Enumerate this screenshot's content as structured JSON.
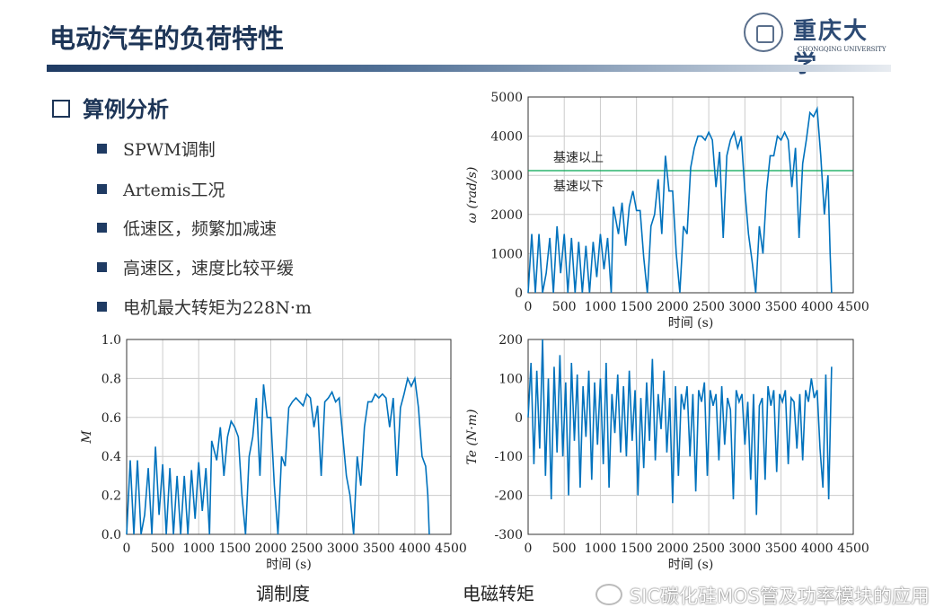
{
  "title": "电动汽车的负荷特性",
  "logo": {
    "cn": "重庆大学",
    "en": "CHONGQING UNIVERSITY"
  },
  "section": "算例分析",
  "bullets": [
    "SPWM调制",
    "Artemis工况",
    "低速区，频繁加减速",
    "高速区，速度比较平缓",
    "电机最大转矩为228N·m"
  ],
  "captions": {
    "modulation": "调制度",
    "torque": "电磁转矩"
  },
  "watermark": "SIC碳化硅MOS管及功率模块的应用",
  "chart_data": [
    {
      "type": "line",
      "id": "speed",
      "xlabel": "时间 (s)",
      "ylabel": "ω (rad/s)",
      "xlim": [
        0,
        4500
      ],
      "ylim": [
        0,
        5000
      ],
      "xticks": [
        0,
        500,
        1000,
        1500,
        2000,
        2500,
        3000,
        3500,
        4000,
        4500
      ],
      "yticks": [
        0,
        1000,
        2000,
        3000,
        4000,
        5000
      ],
      "grid": true,
      "color": "#0072bd",
      "annotations": [
        {
          "text": "基速以上"
        },
        {
          "text": "基速以下"
        }
      ],
      "reference_line": {
        "y": 3120,
        "color": "#00a550"
      },
      "x": [
        0,
        50,
        100,
        150,
        200,
        250,
        300,
        350,
        400,
        450,
        500,
        550,
        600,
        650,
        700,
        750,
        800,
        850,
        900,
        950,
        1000,
        1050,
        1100,
        1150,
        1180,
        1250,
        1300,
        1350,
        1400,
        1450,
        1500,
        1550,
        1600,
        1650,
        1700,
        1750,
        1800,
        1850,
        1900,
        1950,
        2000,
        2050,
        2100,
        2150,
        2200,
        2250,
        2300,
        2350,
        2400,
        2450,
        2500,
        2550,
        2600,
        2650,
        2700,
        2750,
        2800,
        2850,
        2900,
        2950,
        3000,
        3050,
        3100,
        3150,
        3200,
        3250,
        3300,
        3350,
        3400,
        3450,
        3500,
        3550,
        3600,
        3650,
        3700,
        3750,
        3800,
        3850,
        3900,
        3950,
        4000,
        4050,
        4100,
        4150,
        4180,
        4200
      ],
      "y": [
        0,
        1500,
        0,
        1500,
        0,
        500,
        1400,
        0,
        1700,
        500,
        1500,
        0,
        1400,
        0,
        1300,
        0,
        1200,
        0,
        1300,
        400,
        1500,
        600,
        1400,
        0,
        2200,
        1500,
        2300,
        1200,
        2200,
        2600,
        2100,
        2100,
        900,
        0,
        1700,
        2000,
        2900,
        1500,
        3500,
        2600,
        2600,
        1000,
        0,
        1700,
        1500,
        3200,
        3700,
        4000,
        4000,
        3900,
        4100,
        3900,
        2700,
        3600,
        1400,
        3500,
        3900,
        4100,
        3700,
        4000,
        2600,
        1500,
        800,
        0,
        1700,
        1000,
        2600,
        3500,
        3500,
        4000,
        3900,
        4100,
        3900,
        2700,
        3700,
        1400,
        3300,
        3900,
        4600,
        4500,
        4700,
        3500,
        2000,
        3000,
        1000,
        0
      ]
    },
    {
      "type": "line",
      "id": "modulation",
      "xlabel": "时间 (s)",
      "ylabel": "M",
      "xlim": [
        0,
        4500
      ],
      "ylim": [
        0,
        1.0
      ],
      "xticks": [
        0,
        500,
        1000,
        1500,
        2000,
        2500,
        3000,
        3500,
        4000,
        4500
      ],
      "yticks": [
        0,
        0.2,
        0.4,
        0.6,
        0.8,
        1.0
      ],
      "grid": true,
      "color": "#0072bd",
      "x": [
        0,
        50,
        100,
        150,
        200,
        250,
        300,
        350,
        400,
        450,
        500,
        550,
        600,
        650,
        700,
        750,
        800,
        850,
        900,
        950,
        1000,
        1050,
        1100,
        1150,
        1180,
        1250,
        1300,
        1350,
        1400,
        1450,
        1500,
        1550,
        1600,
        1650,
        1700,
        1750,
        1800,
        1850,
        1900,
        1950,
        2000,
        2050,
        2100,
        2150,
        2200,
        2250,
        2300,
        2350,
        2400,
        2450,
        2500,
        2550,
        2600,
        2650,
        2700,
        2750,
        2800,
        2850,
        2900,
        2950,
        3000,
        3050,
        3100,
        3150,
        3200,
        3250,
        3300,
        3350,
        3400,
        3450,
        3500,
        3550,
        3600,
        3650,
        3700,
        3750,
        3800,
        3850,
        3900,
        3950,
        4000,
        4050,
        4100,
        4150,
        4180,
        4200
      ],
      "y": [
        0,
        0.38,
        0,
        0.38,
        0,
        0.1,
        0.34,
        0,
        0.45,
        0.1,
        0.36,
        0,
        0.34,
        0,
        0.3,
        0,
        0.3,
        0,
        0.33,
        0.08,
        0.37,
        0.12,
        0.34,
        0,
        0.48,
        0.38,
        0.55,
        0.3,
        0.5,
        0.58,
        0.55,
        0.5,
        0.2,
        0,
        0.4,
        0.5,
        0.7,
        0.3,
        0.77,
        0.6,
        0.6,
        0.25,
        0,
        0.4,
        0.35,
        0.65,
        0.68,
        0.7,
        0.68,
        0.66,
        0.72,
        0.7,
        0.55,
        0.66,
        0.3,
        0.68,
        0.7,
        0.73,
        0.68,
        0.7,
        0.5,
        0.3,
        0.2,
        0,
        0.4,
        0.25,
        0.55,
        0.68,
        0.68,
        0.72,
        0.7,
        0.72,
        0.7,
        0.55,
        0.7,
        0.3,
        0.65,
        0.72,
        0.8,
        0.76,
        0.8,
        0.65,
        0.4,
        0.35,
        0.2,
        0
      ]
    },
    {
      "type": "line",
      "id": "torque",
      "xlabel": "时间 (s)",
      "ylabel": "Te (N·m)",
      "xlim": [
        0,
        4500
      ],
      "ylim": [
        -300,
        200
      ],
      "xticks": [
        0,
        500,
        1000,
        1500,
        2000,
        2500,
        3000,
        3500,
        4000,
        4500
      ],
      "yticks": [
        -300,
        -200,
        -100,
        0,
        100,
        200
      ],
      "grid": true,
      "color": "#0072bd",
      "x": [
        0,
        40,
        80,
        120,
        160,
        200,
        240,
        280,
        320,
        360,
        400,
        440,
        480,
        520,
        560,
        600,
        640,
        680,
        720,
        760,
        800,
        840,
        880,
        920,
        960,
        1000,
        1040,
        1080,
        1120,
        1160,
        1200,
        1240,
        1280,
        1320,
        1360,
        1400,
        1440,
        1480,
        1520,
        1560,
        1600,
        1640,
        1680,
        1720,
        1760,
        1800,
        1840,
        1880,
        1920,
        1960,
        2000,
        2040,
        2080,
        2120,
        2160,
        2200,
        2240,
        2280,
        2320,
        2360,
        2400,
        2440,
        2480,
        2520,
        2560,
        2600,
        2640,
        2680,
        2720,
        2760,
        2800,
        2840,
        2880,
        2920,
        2960,
        3000,
        3040,
        3080,
        3120,
        3160,
        3200,
        3240,
        3280,
        3320,
        3360,
        3400,
        3440,
        3480,
        3520,
        3560,
        3600,
        3640,
        3680,
        3720,
        3760,
        3800,
        3840,
        3880,
        3920,
        3960,
        4000,
        4040,
        4080,
        4120,
        4160,
        4200
      ],
      "y": [
        0,
        140,
        -120,
        120,
        -80,
        200,
        -150,
        100,
        -210,
        130,
        -90,
        160,
        -100,
        90,
        -200,
        140,
        -60,
        110,
        -180,
        80,
        -50,
        120,
        -160,
        90,
        -70,
        100,
        -120,
        140,
        -180,
        60,
        -40,
        110,
        -90,
        80,
        -100,
        120,
        -60,
        70,
        -200,
        50,
        -130,
        90,
        -60,
        150,
        -110,
        60,
        -30,
        120,
        -90,
        50,
        -220,
        80,
        -150,
        60,
        20,
        80,
        -100,
        60,
        -190,
        70,
        40,
        90,
        -150,
        70,
        30,
        60,
        -110,
        80,
        -70,
        50,
        20,
        -210,
        70,
        40,
        60,
        -70,
        40,
        -160,
        60,
        -250,
        30,
        50,
        -160,
        80,
        30,
        70,
        -140,
        60,
        40,
        70,
        -120,
        50,
        40,
        -80,
        60,
        -110,
        70,
        40,
        100,
        50,
        70,
        -80,
        -180,
        110,
        -210,
        130
      ]
    }
  ]
}
